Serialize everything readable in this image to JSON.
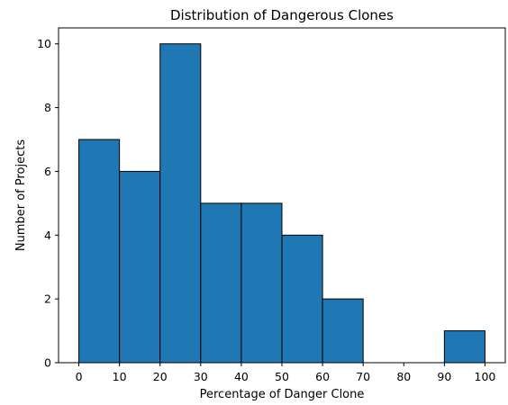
{
  "chart_data": {
    "type": "bar",
    "title": "Distribution of Dangerous Clones",
    "xlabel": "Percentage of Danger Clone",
    "ylabel": "Number of Projects",
    "bins": [
      {
        "start": 0,
        "end": 10,
        "count": 7
      },
      {
        "start": 10,
        "end": 20,
        "count": 6
      },
      {
        "start": 20,
        "end": 30,
        "count": 10
      },
      {
        "start": 30,
        "end": 40,
        "count": 5
      },
      {
        "start": 40,
        "end": 50,
        "count": 5
      },
      {
        "start": 50,
        "end": 60,
        "count": 4
      },
      {
        "start": 60,
        "end": 70,
        "count": 2
      },
      {
        "start": 70,
        "end": 80,
        "count": 0
      },
      {
        "start": 80,
        "end": 90,
        "count": 0
      },
      {
        "start": 90,
        "end": 100,
        "count": 1
      }
    ],
    "xlim": [
      -5,
      105
    ],
    "ylim": [
      0,
      10.5
    ],
    "xticks": [
      "0",
      "10",
      "20",
      "30",
      "40",
      "50",
      "60",
      "70",
      "80",
      "90",
      "100"
    ],
    "yticks": [
      "0",
      "2",
      "4",
      "6",
      "8",
      "10"
    ],
    "grid": false,
    "bar_color": "#1f77b4",
    "edge_color": "#000000"
  }
}
